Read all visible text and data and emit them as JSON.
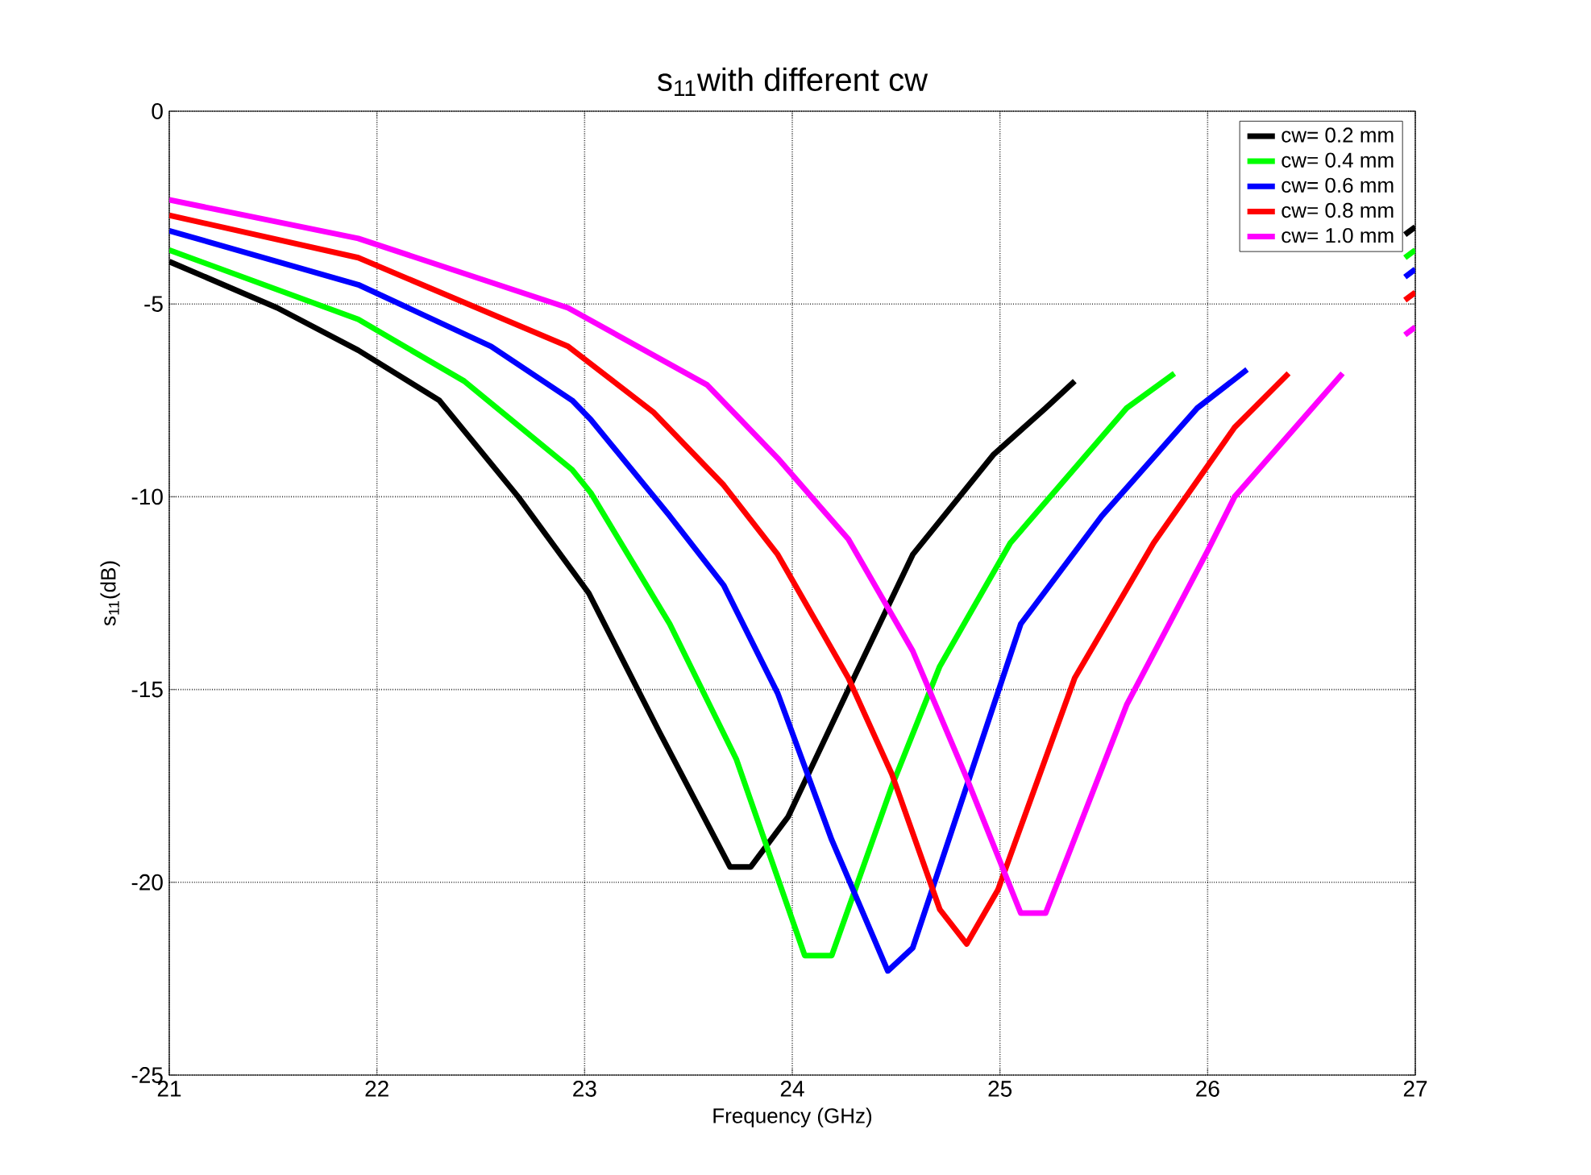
{
  "chart_data": {
    "type": "line",
    "title": "s$_{11}$with different cw",
    "xlabel": "Frequency (GHz)",
    "ylabel": "s$_{11}$(dB)",
    "xlim": [
      21,
      27
    ],
    "ylim": [
      -25,
      0
    ],
    "xticks": [
      21,
      22,
      23,
      24,
      25,
      26,
      27
    ],
    "yticks": [
      -25,
      -20,
      -15,
      -10,
      -5,
      0
    ],
    "grid": true,
    "legend": "top right",
    "line_style": "solid",
    "series": [
      {
        "name": "cw= 0.2 mm",
        "color": "#000000",
        "x": [
          21,
          21.52,
          21.91,
          22.3,
          22.68,
          23.02,
          23.36,
          23.7,
          23.8,
          23.98,
          24.27,
          24.58,
          24.97,
          25.22,
          25.36,
          25.6,
          26.95,
          27
        ],
        "values": [
          -3.9,
          -5.1,
          -6.2,
          -7.5,
          -10.0,
          -12.5,
          -16.1,
          -19.6,
          -19.6,
          -18.3,
          -15.0,
          -11.5,
          -8.9,
          -7.7,
          -7.0,
          null,
          -3.2,
          -3.0
        ]
      },
      {
        "name": "cw= 0.4 mm",
        "color": "#00ff00",
        "x": [
          21,
          21.91,
          22.42,
          22.94,
          23.03,
          23.41,
          23.73,
          24.06,
          24.19,
          24.48,
          24.71,
          25.05,
          25.61,
          25.84,
          26.2,
          26.95,
          27
        ],
        "values": [
          -3.6,
          -5.4,
          -7.0,
          -9.3,
          -9.9,
          -13.3,
          -16.8,
          -21.9,
          -21.9,
          -17.5,
          -14.4,
          -11.2,
          -7.7,
          -6.8,
          null,
          -3.8,
          -3.6
        ]
      },
      {
        "name": "cw= 0.6 mm",
        "color": "#0000ff",
        "x": [
          21,
          21.91,
          22.55,
          22.94,
          23.03,
          23.41,
          23.67,
          23.93,
          24.19,
          24.46,
          24.58,
          24.84,
          25.1,
          25.49,
          25.95,
          26.19,
          26.5,
          26.95,
          27
        ],
        "values": [
          -3.1,
          -4.5,
          -6.1,
          -7.5,
          -8.0,
          -10.5,
          -12.3,
          -15.1,
          -18.9,
          -22.3,
          -21.7,
          -17.5,
          -13.3,
          -10.5,
          -7.7,
          -6.7,
          null,
          -4.3,
          -4.1
        ]
      },
      {
        "name": "cw= 0.8 mm",
        "color": "#ff0000",
        "x": [
          21,
          21.91,
          22.92,
          23.33,
          23.67,
          23.93,
          24.27,
          24.48,
          24.71,
          24.84,
          24.99,
          25.36,
          25.74,
          26.13,
          26.39,
          26.7,
          26.95,
          27
        ],
        "values": [
          -2.7,
          -3.8,
          -6.1,
          -7.8,
          -9.7,
          -11.5,
          -14.7,
          -17.2,
          -20.7,
          -21.6,
          -20.2,
          -14.7,
          -11.2,
          -8.2,
          -6.8,
          null,
          -4.9,
          -4.7
        ]
      },
      {
        "name": "cw= 1.0 mm",
        "color": "#ff00ff",
        "x": [
          21,
          21.91,
          22.92,
          23.59,
          23.93,
          24.27,
          24.58,
          24.84,
          25.1,
          25.22,
          25.61,
          26.0,
          26.13,
          26.65,
          26.8,
          26.95,
          27
        ],
        "values": [
          -2.3,
          -3.3,
          -5.1,
          -7.1,
          -9.0,
          -11.1,
          -14.0,
          -17.3,
          -20.8,
          -20.8,
          -15.4,
          -11.4,
          -10.0,
          -6.8,
          null,
          -5.8,
          -5.6
        ]
      }
    ]
  }
}
